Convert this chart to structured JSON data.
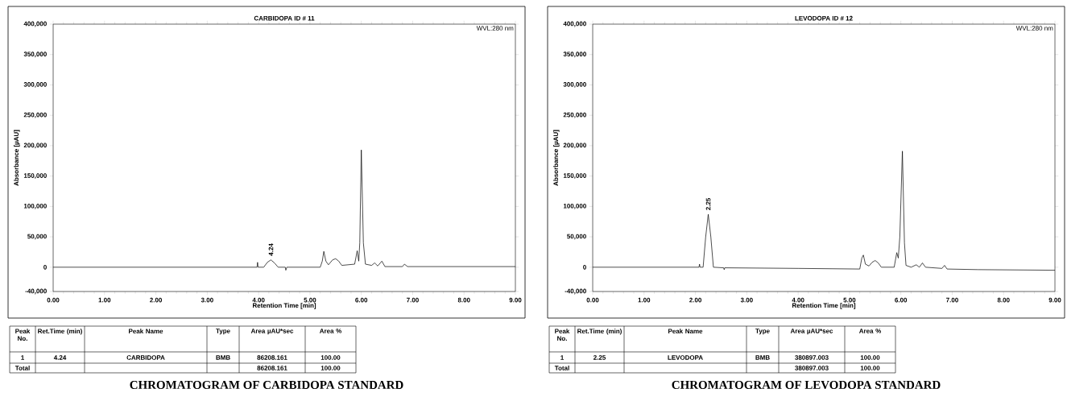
{
  "chart_data": [
    {
      "type": "line",
      "title": "CARBIDOPA ID # 11",
      "xlabel": "Retention Time [min]",
      "ylabel": "Absorbance [µAU]",
      "color": "#000000",
      "x": [
        0,
        1.4,
        1.5,
        3.97,
        3.98,
        3.99,
        4.1,
        4.17,
        4.24,
        4.31,
        4.38,
        4.52,
        4.53,
        4.55,
        5.2,
        5.24,
        5.27,
        5.31,
        5.36,
        5.44,
        5.5,
        5.56,
        5.62,
        5.87,
        5.92,
        5.95,
        5.97,
        6.0,
        6.04,
        6.08,
        6.2,
        6.26,
        6.32,
        6.4,
        6.46,
        6.8,
        6.84,
        6.9,
        9.0
      ],
      "values": [
        0,
        0,
        0,
        0,
        8000,
        0,
        0,
        8000,
        12000,
        7000,
        0,
        0,
        -5000,
        0,
        0,
        10000,
        26000,
        10000,
        4000,
        12000,
        14000,
        10000,
        3000,
        5000,
        27000,
        10000,
        40000,
        193000,
        40000,
        5000,
        3000,
        7000,
        2000,
        10000,
        1000,
        1000,
        5000,
        1000,
        1000
      ],
      "xlim": [
        0,
        9
      ],
      "ylim": [
        -40000,
        400000
      ],
      "xticks": [
        {
          "value": 0,
          "label": "0.00"
        },
        {
          "value": 1,
          "label": "1.00"
        },
        {
          "value": 2,
          "label": "2.00"
        },
        {
          "value": 3,
          "label": "3.00"
        },
        {
          "value": 4,
          "label": "4.00"
        },
        {
          "value": 5,
          "label": "5.00"
        },
        {
          "value": 6,
          "label": "6.00"
        },
        {
          "value": 7,
          "label": "7.00"
        },
        {
          "value": 8,
          "label": "8.00"
        },
        {
          "value": 9,
          "label": "9.00"
        }
      ],
      "yticks": [
        {
          "value": -40000,
          "label": "-40,000"
        },
        0,
        {
          "value": 50000,
          "label": "50,000"
        },
        {
          "value": 100000,
          "label": "100,000"
        },
        {
          "value": 150000,
          "label": "150,000"
        },
        {
          "value": 200000,
          "label": "200,000"
        },
        {
          "value": 250000,
          "label": "250,000"
        },
        {
          "value": 300000,
          "label": "300,000"
        },
        {
          "value": 350000,
          "label": "350,000"
        },
        {
          "value": 400000,
          "label": "400,000"
        }
      ],
      "annotations": [
        {
          "text": "4.24",
          "x": 4.24,
          "y": 12000
        },
        "WVL:280 nm",
        "Peak No.",
        "Ret.Time (min)",
        "Peak Name",
        "Type",
        "Area µAU*sec",
        "Area %",
        "1",
        "4.24",
        "CARBIDOPA",
        "BMB",
        "86208.161",
        "100.00",
        "Total",
        "86208.161",
        "100.00",
        "CHROMATOGRAM OF CARBIDOPA STANDARD"
      ]
    },
    {
      "type": "line",
      "title": "LEVODOPA ID # 12",
      "xlabel": "Retention Time [min]",
      "ylabel": "Absorbance [µAU]",
      "color": "#000000",
      "x": [
        0,
        2.07,
        2.08,
        2.09,
        2.15,
        2.2,
        2.25,
        2.3,
        2.35,
        2.55,
        2.56,
        2.57,
        4.0,
        5.2,
        5.24,
        5.27,
        5.31,
        5.38,
        5.44,
        5.5,
        5.56,
        5.62,
        5.87,
        5.92,
        5.95,
        5.98,
        6.03,
        6.07,
        6.1,
        6.2,
        6.3,
        6.36,
        6.42,
        6.48,
        6.8,
        6.85,
        6.9,
        7.5,
        9.0
      ],
      "values": [
        0,
        0,
        5000,
        0,
        0,
        50000,
        87000,
        50000,
        0,
        -1000,
        -4000,
        -1000,
        -2000,
        -3000,
        15000,
        20000,
        5000,
        2000,
        8000,
        11000,
        7000,
        0,
        0,
        24000,
        15000,
        50000,
        191000,
        40000,
        3000,
        0,
        4000,
        0,
        7000,
        0,
        -2000,
        3000,
        -3000,
        -4000,
        -5000
      ],
      "xlim": [
        0,
        9
      ],
      "ylim": [
        -40000,
        400000
      ],
      "xticks": [
        {
          "value": 0,
          "label": "0.00"
        },
        {
          "value": 1,
          "label": "1.00"
        },
        {
          "value": 2,
          "label": "2.00"
        },
        {
          "value": 3,
          "label": "3.00"
        },
        {
          "value": 4,
          "label": "4.00"
        },
        {
          "value": 5,
          "label": "5.00"
        },
        {
          "value": 6,
          "label": "6.00"
        },
        {
          "value": 7,
          "label": "7.00"
        },
        {
          "value": 8,
          "label": "8.00"
        },
        {
          "value": 9,
          "label": "9.00"
        }
      ],
      "yticks": [
        {
          "value": -40000,
          "label": "-40,000"
        },
        0,
        {
          "value": 50000,
          "label": "50,000"
        },
        {
          "value": 100000,
          "label": "100,000"
        },
        {
          "value": 150000,
          "label": "150,000"
        },
        {
          "value": 200000,
          "label": "200,000"
        },
        {
          "value": 250000,
          "label": "250,000"
        },
        {
          "value": 300000,
          "label": "300,000"
        },
        {
          "value": 350000,
          "label": "350,000"
        },
        {
          "value": 400000,
          "label": "400,000"
        }
      ],
      "annotations": [
        {
          "text": "2.25",
          "x": 2.25,
          "y": 87000
        },
        "WVL:280 nm",
        "Peak No.",
        "Ret.Time (min)",
        "Peak Name",
        "Type",
        "Area µAU*sec",
        "Area %",
        "1",
        "2.25",
        "LEVODOPA",
        "BMB",
        "380897.003",
        "100.00",
        "Total",
        "380897.003",
        "100.00",
        "CHROMATOGRAM OF LEVODOPA STANDARD"
      ]
    }
  ]
}
